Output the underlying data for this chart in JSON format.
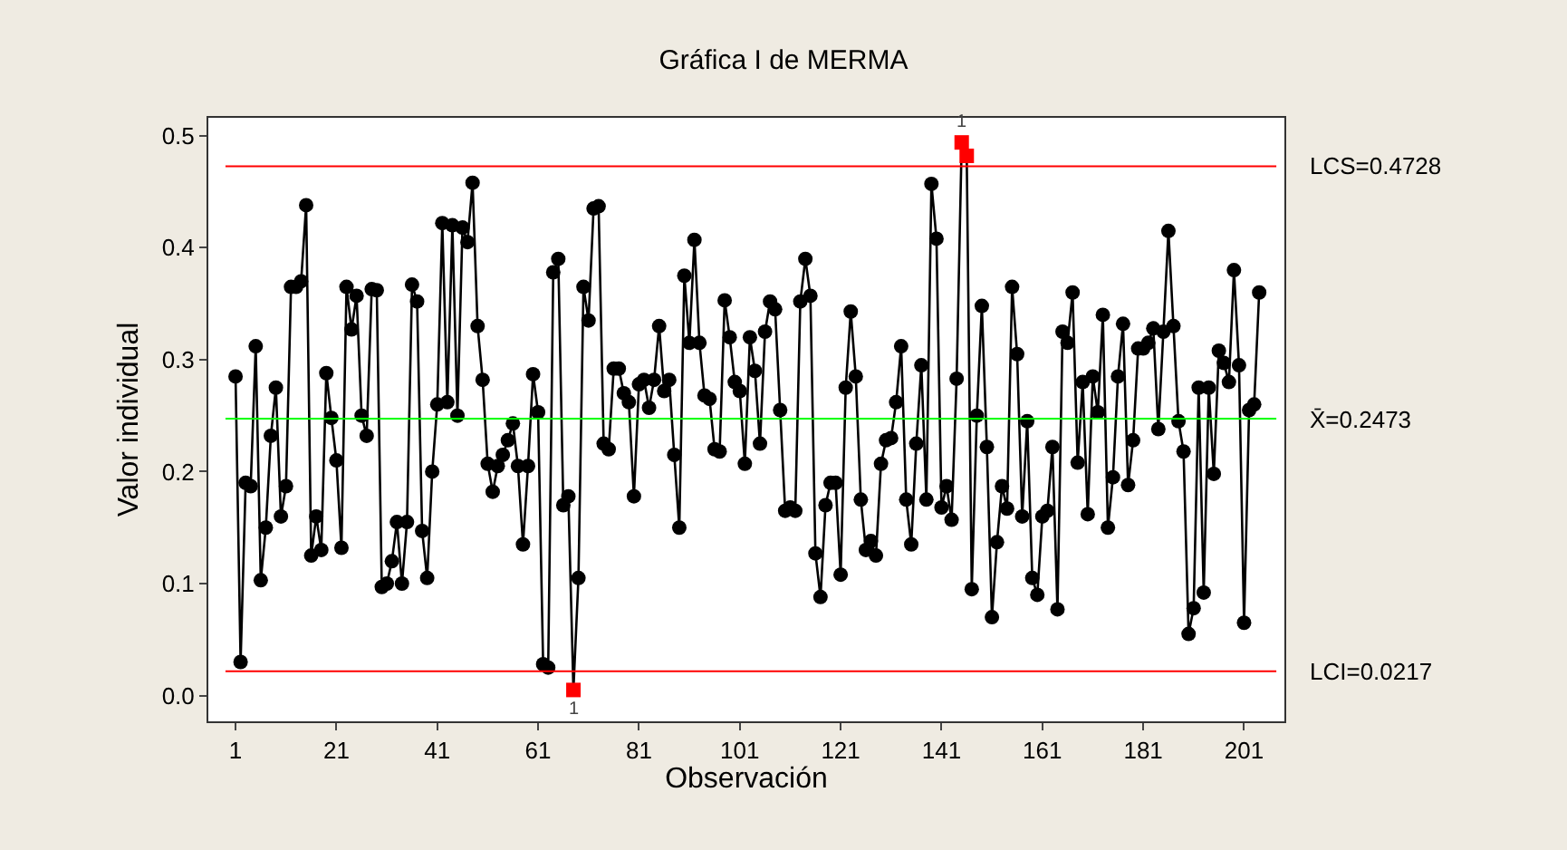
{
  "chart_data": {
    "type": "line",
    "title": "Gráfica I de MERMA",
    "xlabel": "Observación",
    "ylabel": "Valor individual",
    "x": [
      1,
      2,
      3,
      4,
      5,
      6,
      7,
      8,
      9,
      10,
      11,
      12,
      13,
      14,
      15,
      16,
      17,
      18,
      19,
      20,
      21,
      22,
      23,
      24,
      25,
      26,
      27,
      28,
      29,
      30,
      31,
      32,
      33,
      34,
      35,
      36,
      37,
      38,
      39,
      40,
      41,
      42,
      43,
      44,
      45,
      46,
      47,
      48,
      49,
      50,
      51,
      52,
      53,
      54,
      55,
      56,
      57,
      58,
      59,
      60,
      61,
      62,
      63,
      64,
      65,
      66,
      67,
      68,
      69,
      70,
      71,
      72,
      73,
      74,
      75,
      76,
      77,
      78,
      79,
      80,
      81,
      82,
      83,
      84,
      85,
      86,
      87,
      88,
      89,
      90,
      91,
      92,
      93,
      94,
      95,
      96,
      97,
      98,
      99,
      100,
      101,
      102,
      103,
      104,
      105,
      106,
      107,
      108,
      109,
      110,
      111,
      112,
      113,
      114,
      115,
      116,
      117,
      118,
      119,
      120,
      121,
      122,
      123,
      124,
      125,
      126,
      127,
      128,
      129,
      130,
      131,
      132,
      133,
      134,
      135,
      136,
      137,
      138,
      139,
      140,
      141,
      142,
      143,
      144,
      145,
      146,
      147,
      148,
      149,
      150,
      151,
      152,
      153,
      154,
      155,
      156,
      157,
      158,
      159,
      160,
      161,
      162,
      163,
      164,
      165,
      166,
      167,
      168,
      169,
      170,
      171,
      172,
      173,
      174,
      175,
      176,
      177,
      178,
      179,
      180,
      181,
      182,
      183,
      184,
      185,
      186,
      187,
      188,
      189,
      190,
      191,
      192,
      193,
      194,
      195,
      196,
      197,
      198,
      199,
      200,
      201,
      202,
      203,
      204
    ],
    "series": [
      {
        "color": "#000000",
        "values": [
          0.285,
          0.03,
          0.19,
          0.187,
          0.312,
          0.103,
          0.15,
          0.232,
          0.275,
          0.16,
          0.187,
          0.365,
          0.365,
          0.37,
          0.438,
          0.125,
          0.16,
          0.13,
          0.288,
          0.248,
          0.21,
          0.132,
          0.365,
          0.327,
          0.357,
          0.25,
          0.232,
          0.363,
          0.362,
          0.097,
          0.1,
          0.12,
          0.155,
          0.1,
          0.155,
          0.367,
          0.352,
          0.147,
          0.105,
          0.2,
          0.26,
          0.422,
          0.262,
          0.42,
          0.25,
          0.418,
          0.405,
          0.458,
          0.33,
          0.282,
          0.207,
          0.182,
          0.205,
          0.215,
          0.228,
          0.243,
          0.205,
          0.135,
          0.205,
          0.287,
          0.253,
          0.028,
          0.025,
          0.378,
          0.39,
          0.17,
          0.178,
          0.005,
          0.105,
          0.365,
          0.335,
          0.435,
          0.437,
          0.225,
          0.22,
          0.292,
          0.292,
          0.27,
          0.262,
          0.178,
          0.278,
          0.282,
          0.257,
          0.282,
          0.33,
          0.272,
          0.282,
          0.215,
          0.15,
          0.375,
          0.315,
          0.407,
          0.315,
          0.268,
          0.265,
          0.22,
          0.218,
          0.353,
          0.32,
          0.28,
          0.272,
          0.207,
          0.32,
          0.29,
          0.225,
          0.325,
          0.352,
          0.345,
          0.255,
          0.165,
          0.168,
          0.165,
          0.352,
          0.39,
          0.357,
          0.127,
          0.088,
          0.17,
          0.19,
          0.19,
          0.108,
          0.275,
          0.343,
          0.285,
          0.175,
          0.13,
          0.138,
          0.125,
          0.207,
          0.228,
          0.23,
          0.262,
          0.312,
          0.175,
          0.135,
          0.225,
          0.295,
          0.175,
          0.457,
          0.408,
          0.168,
          0.187,
          0.157,
          0.283,
          0.494,
          0.482,
          0.095,
          0.25,
          0.348,
          0.222,
          0.07,
          0.137,
          0.187,
          0.167,
          0.365,
          0.305,
          0.16,
          0.245,
          0.105,
          0.09,
          0.16,
          0.165,
          0.222,
          0.077,
          0.325,
          0.315,
          0.36,
          0.208,
          0.28,
          0.162,
          0.285,
          0.253,
          0.34,
          0.15,
          0.195,
          0.285,
          0.332,
          0.188,
          0.228,
          0.31,
          0.31,
          0.315,
          0.328,
          0.238,
          0.325,
          0.415,
          0.33,
          0.245,
          0.218,
          0.055,
          0.078,
          0.275,
          0.092,
          0.275,
          0.198,
          0.308,
          0.297,
          0.28,
          0.38,
          0.295,
          0.065,
          0.255,
          0.26,
          0.36
        ],
        "colors": [
          "#000000",
          "#000000",
          "#000000",
          "#000000",
          "#000000",
          "#000000",
          "#000000",
          "#000000",
          "#000000",
          "#000000",
          "#000000",
          "#000000",
          "#000000",
          "#000000",
          "#000000",
          "#000000",
          "#000000",
          "#000000",
          "#000000",
          "#000000",
          "#000000",
          "#000000",
          "#000000",
          "#000000",
          "#000000",
          "#000000",
          "#000000",
          "#000000",
          "#000000",
          "#000000",
          "#000000",
          "#000000",
          "#000000",
          "#000000",
          "#000000",
          "#000000",
          "#000000",
          "#000000",
          "#000000",
          "#000000",
          "#000000",
          "#000000",
          "#000000",
          "#000000",
          "#000000",
          "#000000",
          "#000000",
          "#000000",
          "#000000",
          "#000000",
          "#000000",
          "#000000",
          "#000000",
          "#000000",
          "#000000",
          "#000000",
          "#000000",
          "#000000",
          "#000000",
          "#000000",
          "#000000",
          "#000000",
          "#000000",
          "#000000",
          "#000000",
          "#000000",
          "#000000",
          "#ff0000",
          "#000000",
          "#000000",
          "#000000",
          "#000000",
          "#000000",
          "#000000",
          "#000000",
          "#000000",
          "#000000",
          "#000000",
          "#000000",
          "#000000",
          "#000000",
          "#000000",
          "#000000",
          "#000000",
          "#000000",
          "#000000",
          "#000000",
          "#000000",
          "#000000",
          "#000000",
          "#000000",
          "#000000",
          "#000000",
          "#000000",
          "#000000",
          "#000000",
          "#000000",
          "#000000",
          "#000000",
          "#000000",
          "#000000",
          "#000000",
          "#000000",
          "#000000",
          "#000000",
          "#000000",
          "#000000",
          "#000000",
          "#000000",
          "#000000",
          "#000000",
          "#000000",
          "#000000",
          "#000000",
          "#000000",
          "#000000",
          "#000000",
          "#000000",
          "#000000",
          "#000000",
          "#000000",
          "#000000",
          "#000000",
          "#000000",
          "#000000",
          "#000000",
          "#000000",
          "#000000",
          "#000000",
          "#000000",
          "#000000",
          "#000000",
          "#000000",
          "#000000",
          "#000000",
          "#000000",
          "#000000",
          "#000000",
          "#000000",
          "#000000",
          "#000000",
          "#000000",
          "#000000",
          "#000000",
          "#ff0000",
          "#ff0000",
          "#000000",
          "#000000",
          "#000000",
          "#000000",
          "#000000",
          "#000000",
          "#000000",
          "#000000",
          "#000000",
          "#000000",
          "#000000",
          "#000000",
          "#000000",
          "#000000",
          "#000000",
          "#000000",
          "#000000",
          "#000000",
          "#000000",
          "#000000",
          "#000000",
          "#000000",
          "#000000",
          "#000000",
          "#000000",
          "#000000",
          "#000000",
          "#000000",
          "#000000",
          "#000000",
          "#000000",
          "#000000",
          "#000000",
          "#000000",
          "#000000",
          "#000000",
          "#000000",
          "#000000",
          "#000000",
          "#000000",
          "#000000",
          "#000000",
          "#000000",
          "#000000",
          "#000000",
          "#000000",
          "#000000",
          "#000000",
          "#000000",
          "#000000",
          "#000000",
          "#000000",
          "#000000",
          "#000000",
          "#000000",
          "#000000",
          "#000000",
          "#000000"
        ]
      }
    ],
    "ref_lines": [
      {
        "axis": "y",
        "value": 0.4728,
        "label": "LCS=0.4728",
        "color": "#ff0000"
      },
      {
        "axis": "y",
        "value": 0.2473,
        "label": "X̄=0.2473",
        "color": "#00ff00"
      },
      {
        "axis": "y",
        "value": 0.0217,
        "label": "LCI=0.0217",
        "color": "#ff0000"
      }
    ],
    "annotations": [
      {
        "text": "1",
        "x": 68,
        "y": 0.005
      },
      {
        "text": "1",
        "x": 145,
        "y": 0.494
      }
    ],
    "xlim": [
      -4.4,
      209
    ],
    "ylim": [
      -0.023,
      0.516
    ],
    "xticks": [
      1,
      21,
      41,
      61,
      81,
      101,
      121,
      141,
      161,
      181,
      201
    ],
    "yticks": [
      {
        "value": 0,
        "label": "0.0"
      },
      0.1,
      0.2,
      0.3,
      0.4,
      0.5
    ],
    "marker": "circle",
    "line_style": "solid"
  }
}
